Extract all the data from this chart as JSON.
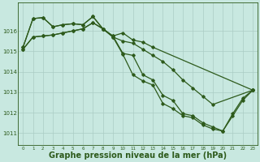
{
  "line1": {
    "x": [
      0,
      1,
      2,
      3,
      4,
      5,
      6,
      7,
      8,
      9,
      10,
      11,
      12,
      13,
      14,
      15,
      16,
      17,
      18,
      19,
      20,
      21,
      22,
      23
    ],
    "y": [
      1015.1,
      1015.7,
      1015.75,
      1015.8,
      1015.9,
      1016.0,
      1016.1,
      1016.4,
      1016.1,
      1015.7,
      1015.5,
      1015.4,
      1015.1,
      1014.8,
      1014.5,
      1014.1,
      1013.6,
      1013.2,
      1012.8,
      1012.4,
      null,
      null,
      null,
      1013.1
    ]
  },
  "line2": {
    "x": [
      0,
      1,
      2,
      3,
      4,
      5,
      6,
      7,
      8,
      9,
      10,
      11,
      12,
      13,
      14,
      15,
      16,
      17,
      18,
      19,
      20,
      21,
      22,
      23
    ],
    "y": [
      1015.2,
      1016.6,
      1016.65,
      1016.2,
      1016.3,
      1016.35,
      1016.3,
      1016.7,
      1016.1,
      1015.75,
      1015.9,
      1015.55,
      1015.45,
      1015.2,
      null,
      null,
      null,
      null,
      null,
      null,
      null,
      null,
      null,
      1013.1
    ]
  },
  "line3": {
    "x": [
      0,
      1,
      2,
      3,
      4,
      5,
      6,
      7,
      8,
      9,
      10,
      11,
      12,
      13,
      14,
      15,
      16,
      17,
      18,
      19,
      20,
      21,
      22,
      23
    ],
    "y": [
      1015.2,
      1016.6,
      1016.65,
      1016.2,
      1016.3,
      1016.35,
      1016.3,
      1016.7,
      1016.1,
      1015.75,
      1014.9,
      1014.8,
      1013.85,
      1013.6,
      1012.85,
      1012.6,
      1011.95,
      1011.85,
      1011.5,
      1011.3,
      1011.1,
      1011.95,
      1012.7,
      1013.1
    ]
  },
  "line4": {
    "x": [
      0,
      1,
      2,
      3,
      4,
      5,
      6,
      7,
      8,
      9,
      10,
      11,
      12,
      13,
      14,
      15,
      16,
      17,
      18,
      19,
      20,
      21,
      22,
      23
    ],
    "y": [
      1015.1,
      1015.7,
      1015.75,
      1015.8,
      1015.9,
      1016.0,
      1016.1,
      1016.4,
      1016.1,
      1015.7,
      1014.85,
      1013.85,
      1013.55,
      1013.35,
      1012.45,
      1012.2,
      1011.85,
      1011.75,
      1011.4,
      1011.2,
      1011.1,
      1011.85,
      1012.6,
      1013.1
    ]
  },
  "line_color": "#2d5a1b",
  "bg_color": "#c8e8e0",
  "grid_color": "#aaccc4",
  "xlabel": "Graphe pression niveau de la mer (hPa)",
  "xlabel_fontsize": 7,
  "ylim": [
    1010.4,
    1017.4
  ],
  "yticks": [
    1011,
    1012,
    1013,
    1014,
    1015,
    1016
  ],
  "xticks": [
    0,
    1,
    2,
    3,
    4,
    5,
    6,
    7,
    8,
    9,
    10,
    11,
    12,
    13,
    14,
    15,
    16,
    17,
    18,
    19,
    20,
    21,
    22,
    23
  ],
  "marker": "D",
  "marker_size": 1.8,
  "line_width": 0.9
}
